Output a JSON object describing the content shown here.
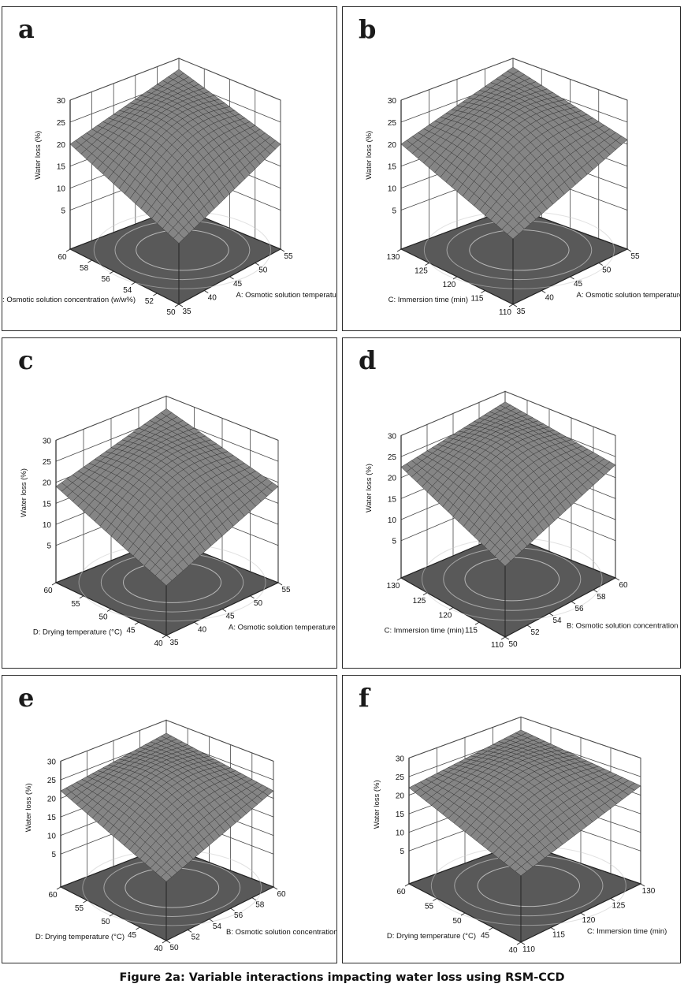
{
  "figure": {
    "caption": "Figure 2a: Variable interactions impacting water loss using RSM-CCD"
  },
  "colors": {
    "surface": "#858585",
    "mesh": "#2e2e2e",
    "floor": "#595959",
    "contour": "#c8c8c8",
    "grid": "#4a4a4a",
    "text": "#111111"
  },
  "chart_data": [
    {
      "type": "surface",
      "panel": "a",
      "zlabel": "Water loss (%)",
      "zticks": [
        5,
        10,
        15,
        20,
        25,
        30
      ],
      "zlim": [
        5,
        30
      ],
      "xlabel": "A: Osmotic solution temperature (°C)",
      "xticks": [
        35,
        40,
        45,
        50,
        55
      ],
      "ylabel": "B: Osmotic solution concentration (w/w%)",
      "yticks": [
        50,
        52,
        54,
        56,
        58,
        60
      ],
      "corners": {
        "back": 27.5,
        "left": 20,
        "right": 20,
        "front": 10
      }
    },
    {
      "type": "surface",
      "panel": "b",
      "zlabel": "Water loss (%)",
      "zticks": [
        5,
        10,
        15,
        20,
        25,
        30
      ],
      "zlim": [
        5,
        30
      ],
      "xlabel": "A: Osmotic solution temperature (°C)",
      "xticks": [
        35,
        40,
        45,
        50,
        55
      ],
      "ylabel": "C: Immersion time (min)",
      "yticks": [
        110,
        115,
        120,
        125,
        130
      ],
      "corners": {
        "back": 28,
        "left": 20,
        "right": 21,
        "front": 11
      }
    },
    {
      "type": "surface",
      "panel": "c",
      "zlabel": "Water loss (%)",
      "zticks": [
        5,
        10,
        15,
        20,
        25,
        30
      ],
      "zlim": [
        5,
        30
      ],
      "xlabel": "A: Osmotic solution temperature (°C)",
      "xticks": [
        35,
        40,
        45,
        50,
        55
      ],
      "ylabel": "D: Drying temperature (°C)",
      "yticks": [
        40,
        45,
        50,
        55,
        60
      ],
      "corners": {
        "back": 27,
        "left": 19,
        "right": 19,
        "front": 8
      }
    },
    {
      "type": "surface",
      "panel": "d",
      "zlabel": "Water loss (%)",
      "zticks": [
        5,
        10,
        15,
        20,
        25,
        30
      ],
      "zlim": [
        5,
        30
      ],
      "xlabel": "B: Osmotic solution concentration (w/w%)",
      "xticks": [
        50,
        52,
        54,
        56,
        58,
        60
      ],
      "ylabel": "C: Immersion time (min)",
      "yticks": [
        110,
        115,
        120,
        125,
        130
      ],
      "corners": {
        "back": 27.5,
        "left": 22.5,
        "right": 23,
        "front": 13
      }
    },
    {
      "type": "surface",
      "panel": "e",
      "zlabel": "Water loss (%)",
      "zticks": [
        5,
        10,
        15,
        20,
        25,
        30
      ],
      "zlim": [
        5,
        30
      ],
      "xlabel": "B: Osmotic solution concentration (w/w%)",
      "xticks": [
        50,
        52,
        54,
        56,
        58,
        60
      ],
      "ylabel": "D: Drying temperature (°C)",
      "yticks": [
        40,
        45,
        50,
        55,
        60
      ],
      "corners": {
        "back": 26.5,
        "left": 22,
        "right": 22,
        "front": 12
      }
    },
    {
      "type": "surface",
      "panel": "f",
      "zlabel": "Water loss (%)",
      "zticks": [
        5,
        10,
        15,
        20,
        25,
        30
      ],
      "zlim": [
        5,
        30
      ],
      "xlabel": "C: Immersion time (min)",
      "xticks": [
        110,
        115,
        120,
        125,
        130
      ],
      "ylabel": "D: Drying temperature (°C)",
      "yticks": [
        40,
        45,
        50,
        55,
        60
      ],
      "corners": {
        "back": 26.5,
        "left": 22,
        "right": 22.5,
        "front": 14
      }
    }
  ]
}
